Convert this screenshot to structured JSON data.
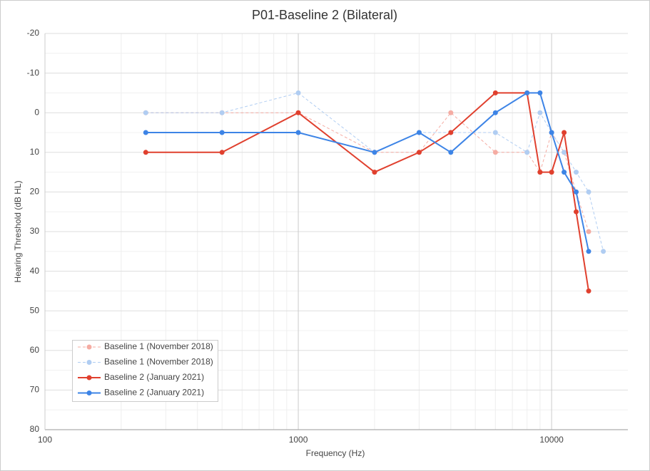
{
  "chart_data": {
    "type": "line",
    "title": "P01-Baseline 2 (Bilateral)",
    "x_label": "Frequency (Hz)",
    "y_label": "Hearing Threshold (dB HL)",
    "x": [
      250,
      500,
      1000,
      2000,
      3000,
      4000,
      6000,
      8000,
      9000,
      10000,
      11200,
      12500,
      14000,
      16000
    ],
    "series": [
      {
        "name": "Baseline 1 (November 2018)",
        "color": "#f5aca3",
        "dashed": true,
        "values": [
          0,
          0,
          0,
          10,
          10,
          0,
          10,
          10,
          15,
          5,
          10,
          20,
          30,
          null
        ]
      },
      {
        "name": "Baseline 1 (November 2018)",
        "color": "#b0cdf2",
        "dashed": true,
        "values": [
          0,
          0,
          -5,
          10,
          5,
          5,
          5,
          10,
          0,
          5,
          10,
          15,
          20,
          35
        ]
      },
      {
        "name": "Baseline 2 (January 2021)",
        "color": "#e0402e",
        "dashed": false,
        "values": [
          10,
          10,
          0,
          15,
          10,
          5,
          -5,
          -5,
          15,
          15,
          5,
          25,
          45,
          null
        ]
      },
      {
        "name": "Baseline 2 (January 2021)",
        "color": "#3d84e6",
        "dashed": false,
        "values": [
          5,
          5,
          5,
          10,
          5,
          10,
          0,
          -5,
          -5,
          5,
          15,
          20,
          35,
          null
        ]
      }
    ],
    "xlim": [
      100,
      20000
    ],
    "xticks": [
      100,
      1000,
      10000
    ],
    "log_x": true,
    "ylim": [
      -20,
      80
    ],
    "yticks": [
      -20,
      -10,
      0,
      10,
      20,
      30,
      40,
      50,
      60,
      70,
      80
    ],
    "y_inverted": true,
    "grid": true,
    "legend": "lower left"
  }
}
